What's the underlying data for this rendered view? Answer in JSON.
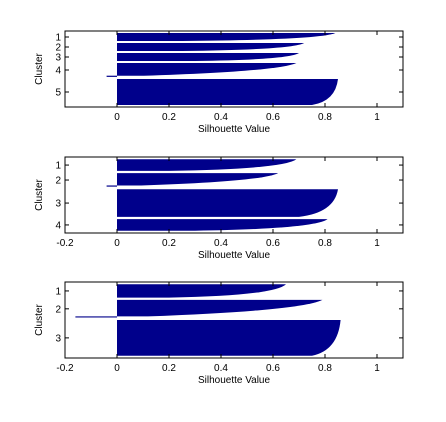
{
  "chart_data": [
    {
      "type": "bar",
      "orientation": "horizontal",
      "xlabel": "Silhouette Value",
      "ylabel": "Cluster",
      "xlim": [
        -0.2,
        1.1
      ],
      "xticks": [
        "0",
        "0.2",
        "0.4",
        "0.6",
        "0.8",
        "1"
      ],
      "xtick_values": [
        0,
        0.2,
        0.4,
        0.6,
        0.8,
        1
      ],
      "clusters": [
        {
          "label": "1",
          "max": 0.84,
          "min": 0.25,
          "count": 4
        },
        {
          "label": "2",
          "max": 0.72,
          "min": 0.25,
          "count": 4
        },
        {
          "label": "3",
          "max": 0.7,
          "min": 0.3,
          "count": 4
        },
        {
          "label": "4",
          "max": 0.69,
          "min": -0.04,
          "count": 7
        },
        {
          "label": "5",
          "max": 0.85,
          "min": 0.75,
          "count": 13
        }
      ],
      "color": "#00008b",
      "grid": false
    },
    {
      "type": "bar",
      "orientation": "horizontal",
      "xlabel": "Silhouette Value",
      "ylabel": "Cluster",
      "xlim": [
        -0.2,
        1.1
      ],
      "xticks": [
        "-0.2",
        "0",
        "0.2",
        "0.4",
        "0.6",
        "0.8",
        "1"
      ],
      "xtick_values": [
        -0.2,
        0,
        0.2,
        0.4,
        0.6,
        0.8,
        1
      ],
      "clusters": [
        {
          "label": "1",
          "max": 0.69,
          "min": 0.2,
          "count": 5
        },
        {
          "label": "2",
          "max": 0.62,
          "min": -0.04,
          "count": 6
        },
        {
          "label": "3",
          "max": 0.85,
          "min": 0.7,
          "count": 12
        },
        {
          "label": "4",
          "max": 0.81,
          "min": 0.3,
          "count": 5
        }
      ],
      "color": "#00008b",
      "grid": false
    },
    {
      "type": "bar",
      "orientation": "horizontal",
      "xlabel": "Silhouette Value",
      "ylabel": "Cluster",
      "xlim": [
        -0.2,
        1.1
      ],
      "xticks": [
        "-0.2",
        "0",
        "0.2",
        "0.4",
        "0.6",
        "0.8",
        "1"
      ],
      "xtick_values": [
        -0.2,
        0,
        0.2,
        0.4,
        0.6,
        0.8,
        1
      ],
      "clusters": [
        {
          "label": "1",
          "max": 0.65,
          "min": 0.2,
          "count": 6
        },
        {
          "label": "2",
          "max": 0.79,
          "min": -0.16,
          "count": 8
        },
        {
          "label": "3",
          "max": 0.86,
          "min": 0.75,
          "count": 16
        }
      ],
      "color": "#00008b",
      "grid": false
    }
  ]
}
